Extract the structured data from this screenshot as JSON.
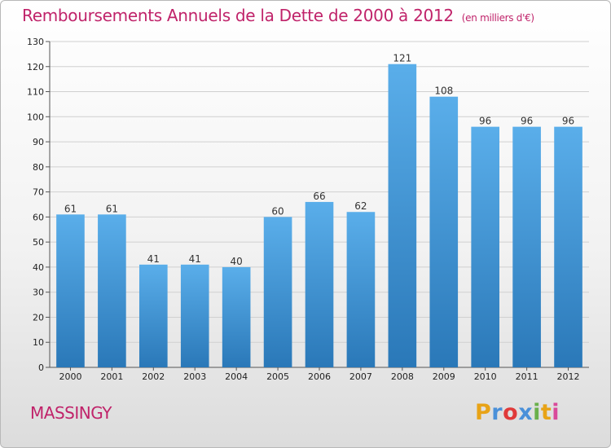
{
  "header": {
    "title": "Remboursements Annuels de la Dette de 2000 à 2012",
    "subtitle": "(en milliers d'€)"
  },
  "footer": {
    "place": "MASSINGY",
    "logo_letters": [
      "P",
      "r",
      "o",
      "x",
      "i",
      "t",
      "i"
    ],
    "logo_colors": [
      "#e8a317",
      "#4a90d9",
      "#e03a3a",
      "#4a90d9",
      "#6ab04c",
      "#e8a317",
      "#d94a9a"
    ]
  },
  "chart_data": {
    "type": "bar",
    "title": "Remboursements Annuels de la Dette de 2000 à 2012",
    "subtitle": "(en milliers d'€)",
    "categories": [
      "2000",
      "2001",
      "2002",
      "2003",
      "2004",
      "2005",
      "2006",
      "2007",
      "2008",
      "2009",
      "2010",
      "2011",
      "2012"
    ],
    "values": [
      61,
      61,
      41,
      41,
      40,
      60,
      66,
      62,
      121,
      108,
      96,
      96,
      96
    ],
    "ylim": [
      0,
      130
    ],
    "yticks": [
      0,
      10,
      20,
      30,
      40,
      50,
      60,
      70,
      80,
      90,
      100,
      110,
      120,
      130
    ],
    "grid": true,
    "bar_color_top": "#5aaeea",
    "bar_color_bottom": "#2a78b8",
    "xlabel": "",
    "ylabel": ""
  }
}
